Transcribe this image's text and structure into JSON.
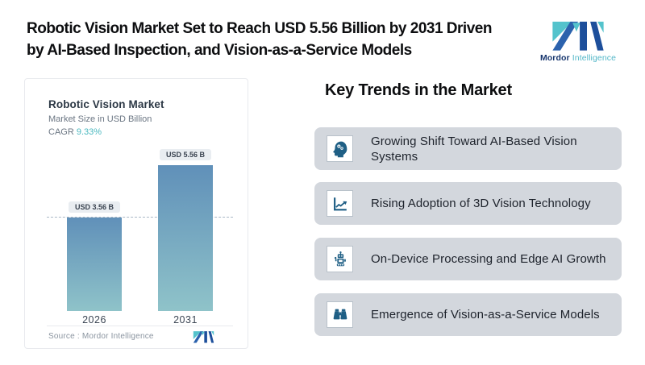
{
  "header": {
    "title": "Robotic Vision Market Set to Reach USD 5.56 Billion by 2031 Driven by AI-Based Inspection, and Vision-as-a-Service Models",
    "title_lines": [
      "Robotic Vision Market Set to Reach USD 5.56 Billion by 2031 Driven",
      "by AI-Based Inspection, and Vision-as-a-Service Models"
    ],
    "brand": {
      "name_bold": "Mordor",
      "name_light": "Intelligence"
    }
  },
  "chart_card": {
    "title": "Robotic Vision Market",
    "subtitle": "Market Size in USD Billion",
    "cagr_label": "CAGR ",
    "cagr_value": "9.33%",
    "source_label": "Source :  Mordor Intelligence"
  },
  "chart_data": {
    "type": "bar",
    "title": "Robotic Vision Market",
    "subtitle": "Market Size in USD Billion",
    "cagr": "9.33%",
    "categories": [
      "2026",
      "2031"
    ],
    "values": [
      3.56,
      5.56
    ],
    "value_labels": [
      "USD 3.56 B",
      "USD 5.56 B"
    ],
    "unit": "USD Billion",
    "reference_line": 3.56,
    "grid": false,
    "legend": false,
    "source": "Mordor Intelligence",
    "bar_gradient": [
      "#6090b9",
      "#8fc3c9"
    ]
  },
  "trends": {
    "heading": "Key Trends in the Market",
    "items": [
      {
        "icon": "ai-head-icon",
        "label": "Growing Shift Toward AI-Based Vision Systems"
      },
      {
        "icon": "line-chart-icon",
        "label": "Rising Adoption of 3D Vision Technology"
      },
      {
        "icon": "robot-icon",
        "label": "On-Device Processing and Edge AI Growth"
      },
      {
        "icon": "binoculars-icon",
        "label": "Emergence of Vision-as-a-Service Models"
      }
    ]
  },
  "colors": {
    "brand_navy": "#1d4f9b",
    "brand_teal": "#54c3cc",
    "icon_blue": "#1f5f85",
    "trend_card_bg": "#d3d7dd",
    "cagr_teal": "#4cb9c0",
    "dashed_line": "#a9b8c6",
    "chip_bg": "#e9edf1"
  }
}
